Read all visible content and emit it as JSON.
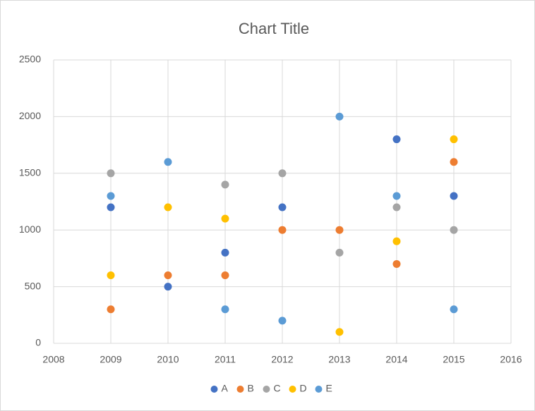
{
  "chart_data": {
    "type": "scatter",
    "title": "Chart Title",
    "x": [
      2009,
      2010,
      2011,
      2012,
      2013,
      2014,
      2015
    ],
    "xlim": [
      2008,
      2016
    ],
    "xticks": [
      2008,
      2009,
      2010,
      2011,
      2012,
      2013,
      2014,
      2015,
      2016
    ],
    "ylim": [
      0,
      2500
    ],
    "yticks": [
      0,
      500,
      1000,
      1500,
      2000,
      2500
    ],
    "grid": true,
    "legend": "bottom",
    "series": [
      {
        "name": "A",
        "color": "#4472c4",
        "values": [
          1200,
          500,
          800,
          1200,
          null,
          1800,
          1300
        ]
      },
      {
        "name": "B",
        "color": "#ed7d31",
        "values": [
          300,
          600,
          600,
          1000,
          1000,
          700,
          1600
        ]
      },
      {
        "name": "C",
        "color": "#a5a5a5",
        "values": [
          1500,
          null,
          1400,
          1500,
          800,
          1200,
          1000
        ]
      },
      {
        "name": "D",
        "color": "#ffc000",
        "values": [
          600,
          1200,
          1100,
          null,
          100,
          900,
          1800
        ]
      },
      {
        "name": "E",
        "color": "#5b9bd5",
        "values": [
          1300,
          1600,
          300,
          200,
          2000,
          1300,
          300
        ]
      }
    ]
  }
}
